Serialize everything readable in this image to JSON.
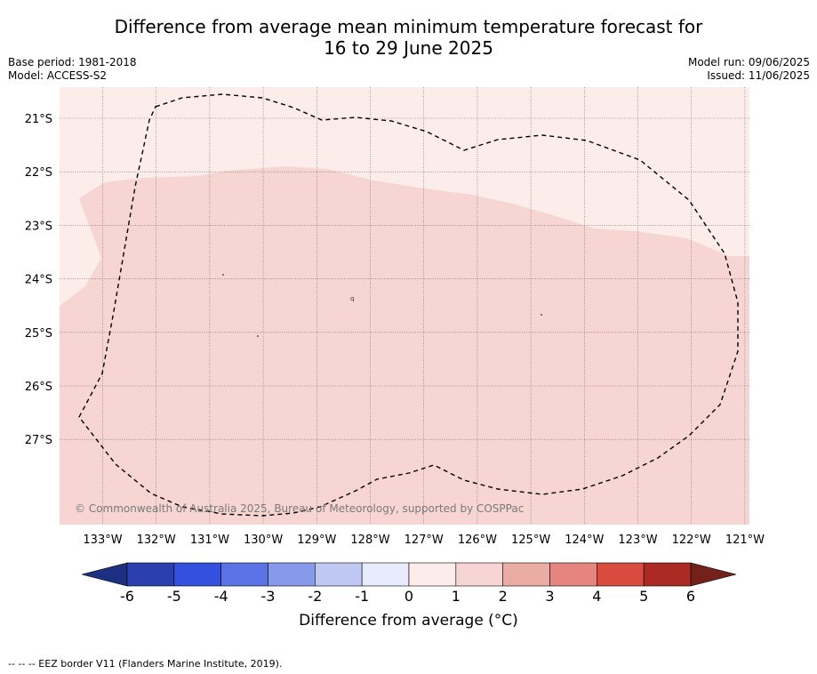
{
  "title_line1": "Difference from average mean minimum temperature forecast for",
  "title_line2": "16 to 29 June 2025",
  "base_period": "Base period: 1981-2018",
  "model": "Model: ACCESS-S2",
  "model_run": "Model run: 09/06/2025",
  "issued": "Issued: 11/06/2025",
  "copyright": "© Commonwealth of Australia 2025, Bureau of Meteorology, supported by COSPPac",
  "lat_labels": [
    "21°S",
    "22°S",
    "23°S",
    "24°S",
    "25°S",
    "26°S",
    "27°S"
  ],
  "lon_labels": [
    "133°W",
    "132°W",
    "131°W",
    "130°W",
    "129°W",
    "128°W",
    "127°W",
    "126°W",
    "125°W",
    "124°W",
    "123°W",
    "122°W",
    "121°W"
  ],
  "colorbar": {
    "ticks": [
      "-6",
      "-5",
      "-4",
      "-3",
      "-2",
      "-1",
      "0",
      "1",
      "2",
      "3",
      "4",
      "5",
      "6"
    ],
    "colors": [
      "#2b3fae",
      "#3350de",
      "#5a72e3",
      "#8799ea",
      "#bfc8f3",
      "#e8ebfb",
      "#fcecea",
      "#f6d5d3",
      "#ecaca6",
      "#e5857d",
      "#d94a3f",
      "#ab2a23"
    ],
    "under_color": "#1d2f80",
    "over_color": "#74201b",
    "unit_label": "Difference from average ($^\\circ$C)",
    "unit_text": "Difference from average (°C)"
  },
  "map_fill": {
    "light_band": "#fcecea",
    "main": "#f6d5d3"
  },
  "legend_footnote": "--  --  -- EEZ border V11 (Flanders Marine Institute, 2019)."
}
